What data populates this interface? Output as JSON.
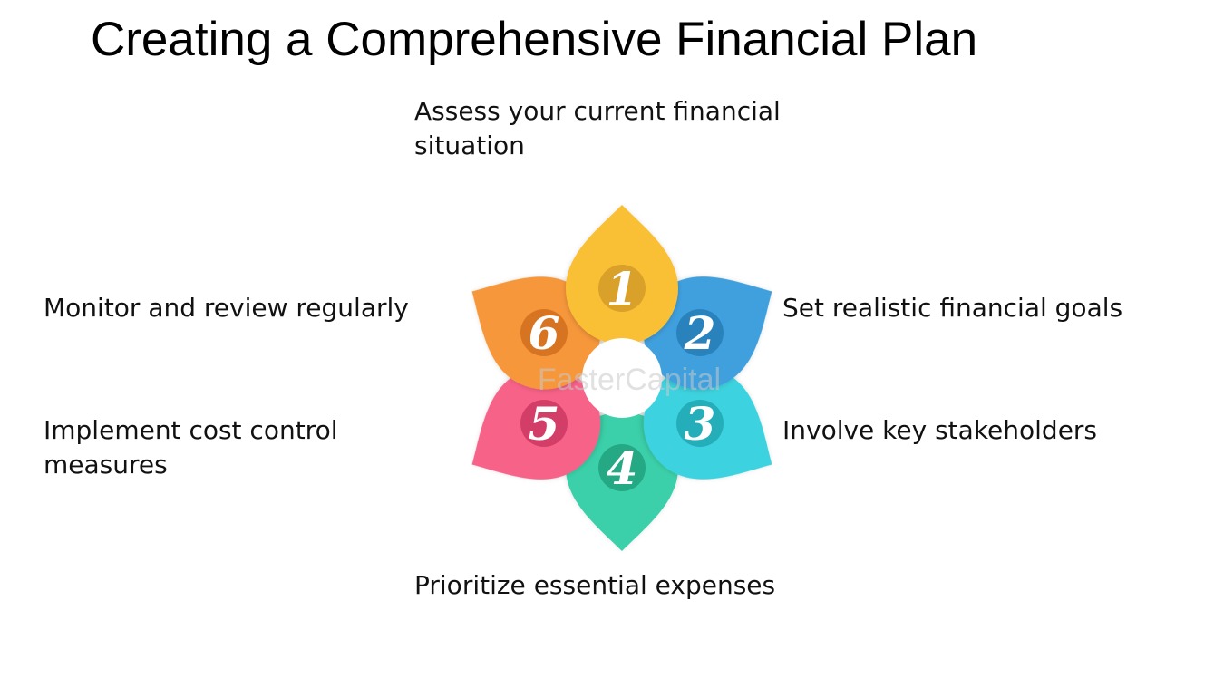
{
  "title": "Creating a Comprehensive Financial Plan",
  "watermark": "FasterCapital",
  "steps": [
    {
      "number": "1",
      "label": "Assess your current financial situation",
      "color": "#F9C035",
      "disc": "#D9A02A"
    },
    {
      "number": "2",
      "label": "Set realistic financial goals",
      "color": "#3FA0DE",
      "disc": "#2A82BD"
    },
    {
      "number": "3",
      "label": "Involve key stakeholders",
      "color": "#3DD2DF",
      "disc": "#24AEBA"
    },
    {
      "number": "4",
      "label": "Prioritize essential expenses",
      "color": "#3BD0A9",
      "disc": "#25A884"
    },
    {
      "number": "5",
      "label": "Implement cost control measures",
      "color": "#F76288",
      "disc": "#D33E68"
    },
    {
      "number": "6",
      "label": "Monitor and review regularly",
      "color": "#F7973A",
      "disc": "#D67421"
    }
  ]
}
